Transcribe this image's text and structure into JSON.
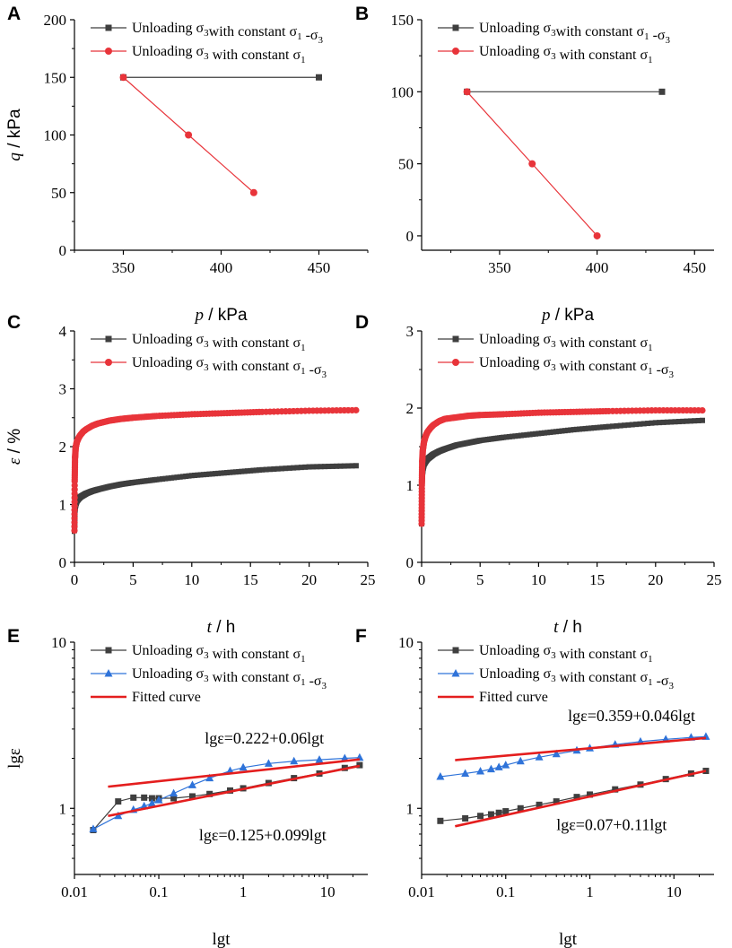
{
  "colors": {
    "black_series": "#3f3f3f",
    "red_series": "#e8343a",
    "blue_series": "#2f73d9",
    "fit": "#e41e1e",
    "axis": "#000000"
  },
  "chart_data": [
    {
      "id": "A",
      "type": "line",
      "panel_label": "A",
      "xlabel_var": "p",
      "xlabel_unit": " / kPa",
      "ylabel_var": "q",
      "ylabel_unit": " / kPa",
      "xlim": [
        325,
        475
      ],
      "ylim": [
        0,
        200
      ],
      "xticks": [
        "350",
        "400",
        "450"
      ],
      "xtick_values": [
        350,
        400,
        450
      ],
      "yticks": [
        "0",
        "50",
        "100",
        "150",
        "200"
      ],
      "ytick_values": [
        0,
        50,
        100,
        150,
        200
      ],
      "series": [
        {
          "name": "Unloading σ3with constant σ1 -σ3",
          "color": "#3f3f3f",
          "marker": "square",
          "x": [
            350,
            450
          ],
          "y": [
            150,
            150
          ]
        },
        {
          "name": "Unloading σ3 with constant σ1",
          "color": "#e8343a",
          "marker": "circle",
          "x": [
            350,
            383.3,
            416.7
          ],
          "y": [
            150,
            100,
            50
          ]
        }
      ],
      "legend": [
        {
          "text": "Unloading σ",
          "sub1": "3",
          "text2": "with constant σ",
          "sub2": "1",
          "text3": " -σ",
          "sub3": "3"
        },
        {
          "text": "Unloading σ",
          "sub1": "3",
          "text2": " with constant σ",
          "sub2": "1",
          "text3": "",
          "sub3": ""
        }
      ]
    },
    {
      "id": "B",
      "type": "line",
      "panel_label": "B",
      "xlabel_var": "p",
      "xlabel_unit": " / kPa",
      "ylabel_var": "",
      "ylabel_unit": "",
      "xlim": [
        310,
        460
      ],
      "ylim": [
        -10,
        150
      ],
      "xticks": [
        "350",
        "400",
        "450"
      ],
      "xtick_values": [
        350,
        400,
        450
      ],
      "yticks": [
        "0",
        "50",
        "100",
        "150"
      ],
      "ytick_values": [
        0,
        50,
        100,
        150
      ],
      "series": [
        {
          "name": "Unloading σ3with constant σ1 -σ3",
          "color": "#3f3f3f",
          "marker": "square",
          "x": [
            333.3,
            433.3
          ],
          "y": [
            100,
            100
          ]
        },
        {
          "name": "Unloading σ3 with constant σ1",
          "color": "#e8343a",
          "marker": "circle",
          "x": [
            333.3,
            366.7,
            400
          ],
          "y": [
            100,
            50,
            0
          ]
        }
      ],
      "legend": [
        {
          "text": "Unloading σ",
          "sub1": "3",
          "text2": "with constant σ",
          "sub2": "1",
          "text3": " -σ",
          "sub3": "3"
        },
        {
          "text": "Unloading σ",
          "sub1": "3",
          "text2": " with constant σ",
          "sub2": "1",
          "text3": "",
          "sub3": ""
        }
      ]
    },
    {
      "id": "C",
      "type": "line",
      "panel_label": "C",
      "xlabel_var": "t",
      "xlabel_unit": " / h",
      "ylabel_var": "ε",
      "ylabel_unit": " / %",
      "xlim": [
        0,
        25
      ],
      "ylim": [
        0,
        4
      ],
      "xticks": [
        "0",
        "5",
        "10",
        "15",
        "20",
        "25"
      ],
      "xtick_values": [
        0,
        5,
        10,
        15,
        20,
        25
      ],
      "yticks": [
        "0",
        "1",
        "2",
        "3",
        "4"
      ],
      "ytick_values": [
        0,
        1,
        2,
        3,
        4
      ],
      "series": [
        {
          "name": "Unloading σ3 with constant σ1",
          "color": "#3f3f3f",
          "marker": "square-dense",
          "x": [
            0,
            0.02,
            0.05,
            0.1,
            0.2,
            0.35,
            0.5,
            0.75,
            1,
            1.5,
            2,
            3,
            4,
            5,
            7,
            10,
            13,
            16,
            20,
            24
          ],
          "y": [
            0.55,
            0.8,
            0.93,
            1.0,
            1.06,
            1.1,
            1.13,
            1.16,
            1.19,
            1.23,
            1.26,
            1.31,
            1.35,
            1.38,
            1.43,
            1.5,
            1.55,
            1.6,
            1.65,
            1.67
          ]
        },
        {
          "name": "Unloading σ3 with constant σ1 -σ3",
          "color": "#e8343a",
          "marker": "circle-dense",
          "x": [
            0,
            0.02,
            0.05,
            0.1,
            0.2,
            0.35,
            0.5,
            0.75,
            1,
            1.5,
            2,
            3,
            4,
            5,
            7,
            10,
            13,
            16,
            20,
            24
          ],
          "y": [
            0.55,
            1.4,
            1.8,
            1.98,
            2.08,
            2.15,
            2.2,
            2.26,
            2.3,
            2.36,
            2.4,
            2.45,
            2.48,
            2.5,
            2.53,
            2.56,
            2.58,
            2.6,
            2.62,
            2.63
          ]
        }
      ],
      "legend": [
        {
          "text": "Unloading σ",
          "sub1": "3",
          "text2": " with constant σ",
          "sub2": "1",
          "text3": "",
          "sub3": ""
        },
        {
          "text": "Unloading σ",
          "sub1": "3",
          "text2": " with constant σ",
          "sub2": "1",
          "text3": " -σ",
          "sub3": "3"
        }
      ]
    },
    {
      "id": "D",
      "type": "line",
      "panel_label": "D",
      "xlabel_var": "t",
      "xlabel_unit": " / h",
      "ylabel_var": "",
      "ylabel_unit": "",
      "xlim": [
        0,
        25
      ],
      "ylim": [
        0,
        3
      ],
      "xticks": [
        "0",
        "5",
        "10",
        "15",
        "20",
        "25"
      ],
      "xtick_values": [
        0,
        5,
        10,
        15,
        20,
        25
      ],
      "yticks": [
        "0",
        "1",
        "2",
        "3"
      ],
      "ytick_values": [
        0,
        1,
        2,
        3
      ],
      "series": [
        {
          "name": "Unloading σ3 with constant σ1",
          "color": "#3f3f3f",
          "marker": "square-dense",
          "x": [
            0,
            0.02,
            0.05,
            0.1,
            0.2,
            0.35,
            0.5,
            0.75,
            1,
            1.5,
            2,
            3,
            4,
            5,
            7,
            10,
            13,
            16,
            20,
            24
          ],
          "y": [
            0.5,
            0.9,
            1.1,
            1.2,
            1.27,
            1.31,
            1.34,
            1.37,
            1.4,
            1.44,
            1.47,
            1.52,
            1.55,
            1.58,
            1.62,
            1.67,
            1.72,
            1.76,
            1.81,
            1.84
          ]
        },
        {
          "name": "Unloading σ3 with constant σ1 -σ3",
          "color": "#e8343a",
          "marker": "circle-dense",
          "x": [
            0,
            0.02,
            0.05,
            0.1,
            0.2,
            0.35,
            0.5,
            0.75,
            1,
            1.5,
            2,
            3,
            4,
            5,
            7,
            10,
            13,
            16,
            20,
            24
          ],
          "y": [
            0.5,
            1.0,
            1.3,
            1.45,
            1.56,
            1.64,
            1.69,
            1.74,
            1.78,
            1.83,
            1.86,
            1.88,
            1.9,
            1.91,
            1.92,
            1.94,
            1.95,
            1.96,
            1.97,
            1.97
          ]
        }
      ],
      "legend": [
        {
          "text": "Unloading σ",
          "sub1": "3",
          "text2": " with constant σ",
          "sub2": "1",
          "text3": "",
          "sub3": ""
        },
        {
          "text": "Unloading σ",
          "sub1": "3",
          "text2": " with constant σ",
          "sub2": "1",
          "text3": " -σ",
          "sub3": "3"
        }
      ]
    },
    {
      "id": "E",
      "type": "line",
      "scale": "log-log",
      "panel_label": "E",
      "xlabel": "lgt",
      "ylabel": "lgε",
      "xlim": [
        0.01,
        30
      ],
      "ylim": [
        0.4,
        10
      ],
      "xticks": [
        "0.01",
        "0.1",
        "1",
        "10"
      ],
      "xtick_values": [
        0.01,
        0.1,
        1,
        10
      ],
      "yticks": [
        "1",
        "10"
      ],
      "ytick_values": [
        1,
        10
      ],
      "series": [
        {
          "name": "Unloading σ3 with constant σ1",
          "color": "#3f3f3f",
          "marker": "square",
          "x": [
            0.0167,
            0.033,
            0.05,
            0.067,
            0.083,
            0.1,
            0.15,
            0.25,
            0.4,
            0.7,
            1,
            2,
            4,
            8,
            16,
            24
          ],
          "y": [
            0.74,
            1.1,
            1.16,
            1.16,
            1.15,
            1.15,
            1.15,
            1.18,
            1.22,
            1.28,
            1.32,
            1.42,
            1.52,
            1.62,
            1.75,
            1.82
          ]
        },
        {
          "name": "Unloading σ3 with constant σ1 -σ3",
          "color": "#2f73d9",
          "marker": "triangle",
          "x": [
            0.0167,
            0.033,
            0.05,
            0.067,
            0.083,
            0.1,
            0.15,
            0.25,
            0.4,
            0.7,
            1,
            2,
            4,
            8,
            16,
            24
          ],
          "y": [
            0.75,
            0.9,
            0.98,
            1.03,
            1.07,
            1.12,
            1.23,
            1.38,
            1.52,
            1.68,
            1.76,
            1.86,
            1.92,
            1.96,
            2.0,
            2.02
          ]
        },
        {
          "name": "Fitted curve",
          "color": "#e41e1e",
          "marker": "none",
          "x": [
            0.025,
            24
          ],
          "y": [
            1.35,
            1.97
          ]
        },
        {
          "name": "Fitted curve",
          "color": "#e41e1e",
          "marker": "none",
          "x": [
            0.025,
            24
          ],
          "y": [
            0.9,
            1.8
          ]
        }
      ],
      "legend": [
        {
          "text": "Unloading σ",
          "sub1": "3",
          "text2": " with constant σ",
          "sub2": "1",
          "text3": "",
          "sub3": ""
        },
        {
          "text": "Unloading σ",
          "sub1": "3",
          "text2": " with constant σ",
          "sub2": "1",
          "text3": " -σ",
          "sub3": "3"
        },
        {
          "text": "Fitted curve",
          "sub1": "",
          "text2": "",
          "sub2": "",
          "text3": "",
          "sub3": ""
        }
      ],
      "annotations": [
        {
          "text": "lgε=0.222+0.06lgt",
          "x": 0.35,
          "y": 2.45
        },
        {
          "text": "lgε=0.125+0.099lgt",
          "x": 0.3,
          "y": 0.64
        }
      ]
    },
    {
      "id": "F",
      "type": "line",
      "scale": "log-log",
      "panel_label": "F",
      "xlabel": "lgt",
      "ylabel": "",
      "xlim": [
        0.01,
        30
      ],
      "ylim": [
        0.4,
        10
      ],
      "xticks": [
        "0.01",
        "0.1",
        "1",
        "10"
      ],
      "xtick_values": [
        0.01,
        0.1,
        1,
        10
      ],
      "yticks": [
        "1",
        "10"
      ],
      "ytick_values": [
        1,
        10
      ],
      "series": [
        {
          "name": "Unloading σ3 with constant σ1",
          "color": "#3f3f3f",
          "marker": "square",
          "x": [
            0.0167,
            0.033,
            0.05,
            0.067,
            0.083,
            0.1,
            0.15,
            0.25,
            0.4,
            0.7,
            1,
            2,
            4,
            8,
            16,
            24
          ],
          "y": [
            0.84,
            0.87,
            0.9,
            0.92,
            0.94,
            0.96,
            1.0,
            1.05,
            1.1,
            1.17,
            1.21,
            1.3,
            1.39,
            1.5,
            1.62,
            1.68
          ]
        },
        {
          "name": "Unloading σ3 with constant σ1 -σ3",
          "color": "#2f73d9",
          "marker": "triangle",
          "x": [
            0.0167,
            0.033,
            0.05,
            0.067,
            0.083,
            0.1,
            0.15,
            0.25,
            0.4,
            0.7,
            1,
            2,
            4,
            8,
            16,
            24
          ],
          "y": [
            1.55,
            1.62,
            1.67,
            1.72,
            1.77,
            1.82,
            1.92,
            2.03,
            2.12,
            2.23,
            2.3,
            2.42,
            2.52,
            2.6,
            2.67,
            2.7
          ]
        },
        {
          "name": "Fitted curve",
          "color": "#e41e1e",
          "marker": "none",
          "x": [
            0.025,
            24
          ],
          "y": [
            1.95,
            2.65
          ]
        },
        {
          "name": "Fitted curve",
          "color": "#e41e1e",
          "marker": "none",
          "x": [
            0.025,
            24
          ],
          "y": [
            0.78,
            1.68
          ]
        }
      ],
      "legend": [
        {
          "text": "Unloading σ",
          "sub1": "3",
          "text2": " with constant σ",
          "sub2": "1",
          "text3": "",
          "sub3": ""
        },
        {
          "text": "Unloading σ",
          "sub1": "3",
          "text2": " with constant σ",
          "sub2": "1",
          "text3": " -σ",
          "sub3": "3"
        },
        {
          "text": "Fitted curve",
          "sub1": "",
          "text2": "",
          "sub2": "",
          "text3": "",
          "sub3": ""
        }
      ],
      "annotations": [
        {
          "text": "lgε=0.359+0.046lgt",
          "x": 0.55,
          "y": 3.35
        },
        {
          "text": "lgε=0.07+0.11lgt",
          "x": 0.4,
          "y": 0.74
        }
      ]
    }
  ]
}
